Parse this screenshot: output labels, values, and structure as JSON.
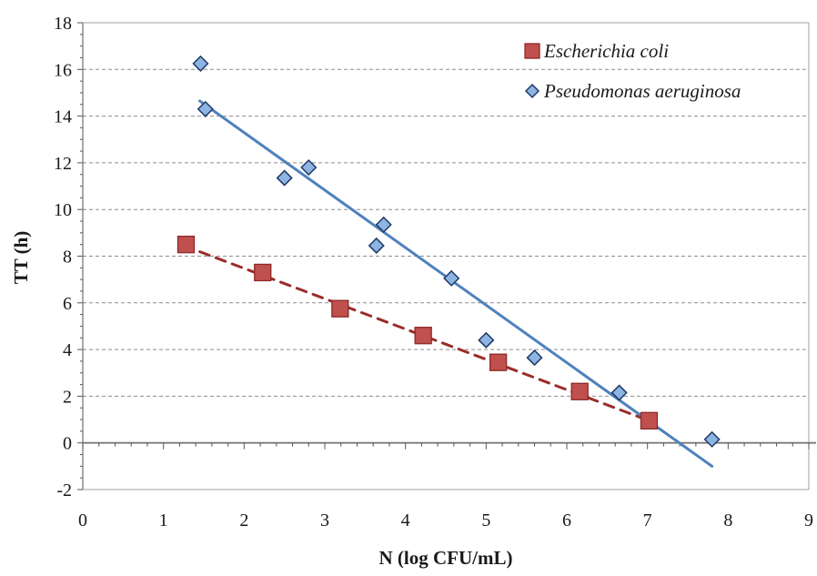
{
  "chart_data": {
    "type": "scatter",
    "title": "",
    "xlabel": "N (log CFU/mL)",
    "ylabel": "TT (h)",
    "xlim": [
      0,
      9
    ],
    "ylim": [
      -2,
      18
    ],
    "x_ticks": [
      "0",
      "1",
      "2",
      "3",
      "4",
      "5",
      "6",
      "7",
      "8",
      "9"
    ],
    "y_ticks": [
      "-2",
      "0",
      "2",
      "4",
      "6",
      "8",
      "10",
      "12",
      "14",
      "16",
      "18"
    ],
    "grid": "horizontal dashed",
    "legend_position": "top-right",
    "series": [
      {
        "name": "Escherichia coli",
        "marker": "square",
        "color": "#c0504d",
        "edge_color": "#8b2a27",
        "points": [
          {
            "x": 1.28,
            "y": 8.5
          },
          {
            "x": 2.23,
            "y": 7.3
          },
          {
            "x": 3.19,
            "y": 5.75
          },
          {
            "x": 4.22,
            "y": 4.6
          },
          {
            "x": 5.15,
            "y": 3.45
          },
          {
            "x": 6.16,
            "y": 2.2
          },
          {
            "x": 7.02,
            "y": 0.95
          }
        ],
        "trendline": {
          "style": "dashed",
          "color": "#9b2d2a",
          "x": [
            1.25,
            7.02
          ],
          "y": [
            8.45,
            0.95
          ]
        }
      },
      {
        "name": "Pseudomonas aeruginosa",
        "marker": "diamond",
        "color": "#8db4e2",
        "edge_color": "#1f3864",
        "points": [
          {
            "x": 1.46,
            "y": 16.25
          },
          {
            "x": 1.52,
            "y": 14.3
          },
          {
            "x": 2.5,
            "y": 11.35
          },
          {
            "x": 2.8,
            "y": 11.8
          },
          {
            "x": 3.64,
            "y": 8.45
          },
          {
            "x": 3.73,
            "y": 9.35
          },
          {
            "x": 4.57,
            "y": 7.05
          },
          {
            "x": 5.0,
            "y": 4.4
          },
          {
            "x": 5.6,
            "y": 3.65
          },
          {
            "x": 6.65,
            "y": 2.15
          },
          {
            "x": 7.8,
            "y": 0.15
          }
        ],
        "trendline": {
          "style": "solid",
          "color": "#4f81bd",
          "x": [
            1.45,
            7.8
          ],
          "y": [
            14.65,
            -1.0
          ]
        }
      }
    ]
  }
}
